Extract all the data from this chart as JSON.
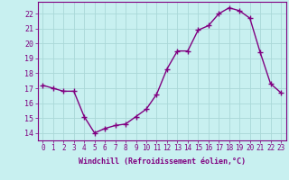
{
  "x": [
    0,
    1,
    2,
    3,
    4,
    5,
    6,
    7,
    8,
    9,
    10,
    11,
    12,
    13,
    14,
    15,
    16,
    17,
    18,
    19,
    20,
    21,
    22,
    23
  ],
  "y": [
    17.2,
    17.0,
    16.8,
    16.8,
    15.1,
    14.0,
    14.3,
    14.5,
    14.6,
    15.1,
    15.6,
    16.6,
    18.3,
    19.5,
    19.5,
    20.9,
    21.2,
    22.0,
    22.4,
    22.2,
    21.7,
    19.4,
    17.3,
    16.7
  ],
  "line_color": "#800080",
  "marker": "+",
  "marker_size": 4,
  "bg_color": "#c8f0f0",
  "grid_color": "#aad8d8",
  "xlabel": "Windchill (Refroidissement éolien,°C)",
  "ylim": [
    13.5,
    22.8
  ],
  "xlim": [
    -0.5,
    23.5
  ],
  "yticks": [
    14,
    15,
    16,
    17,
    18,
    19,
    20,
    21,
    22
  ],
  "xticks": [
    0,
    1,
    2,
    3,
    4,
    5,
    6,
    7,
    8,
    9,
    10,
    11,
    12,
    13,
    14,
    15,
    16,
    17,
    18,
    19,
    20,
    21,
    22,
    23
  ]
}
